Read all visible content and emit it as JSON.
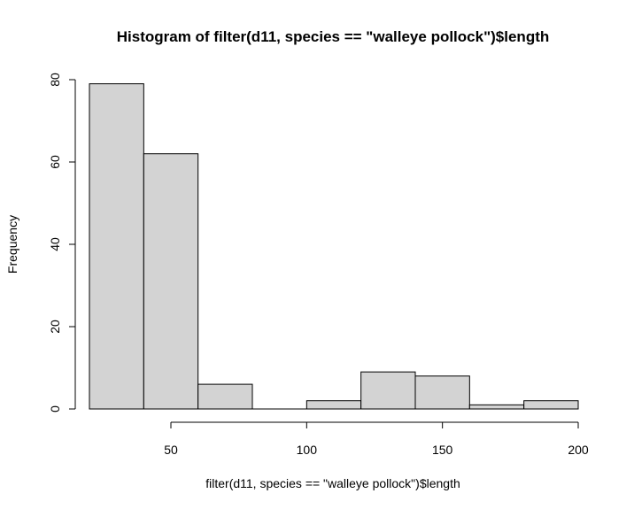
{
  "chart_data": {
    "type": "bar",
    "title": "Histogram of filter(d11, species == \"walleye pollock\")$length",
    "xlabel": "filter(d11, species == \"walleye pollock\")$length",
    "ylabel": "Frequency",
    "bins": [
      {
        "x0": 20,
        "x1": 40,
        "count": 79
      },
      {
        "x0": 40,
        "x1": 60,
        "count": 62
      },
      {
        "x0": 60,
        "x1": 80,
        "count": 6
      },
      {
        "x0": 80,
        "x1": 100,
        "count": 0
      },
      {
        "x0": 100,
        "x1": 120,
        "count": 2
      },
      {
        "x0": 120,
        "x1": 140,
        "count": 9
      },
      {
        "x0": 140,
        "x1": 160,
        "count": 8
      },
      {
        "x0": 160,
        "x1": 180,
        "count": 1
      },
      {
        "x0": 180,
        "x1": 200,
        "count": 2
      }
    ],
    "xlim": [
      20,
      200
    ],
    "ylim": [
      0,
      80
    ],
    "xticks": [
      50,
      100,
      150,
      200
    ],
    "yticks": [
      0,
      20,
      40,
      60,
      80
    ],
    "grid": false,
    "colors": {
      "bar_fill": "#d3d3d3",
      "bar_stroke": "#000000"
    }
  }
}
